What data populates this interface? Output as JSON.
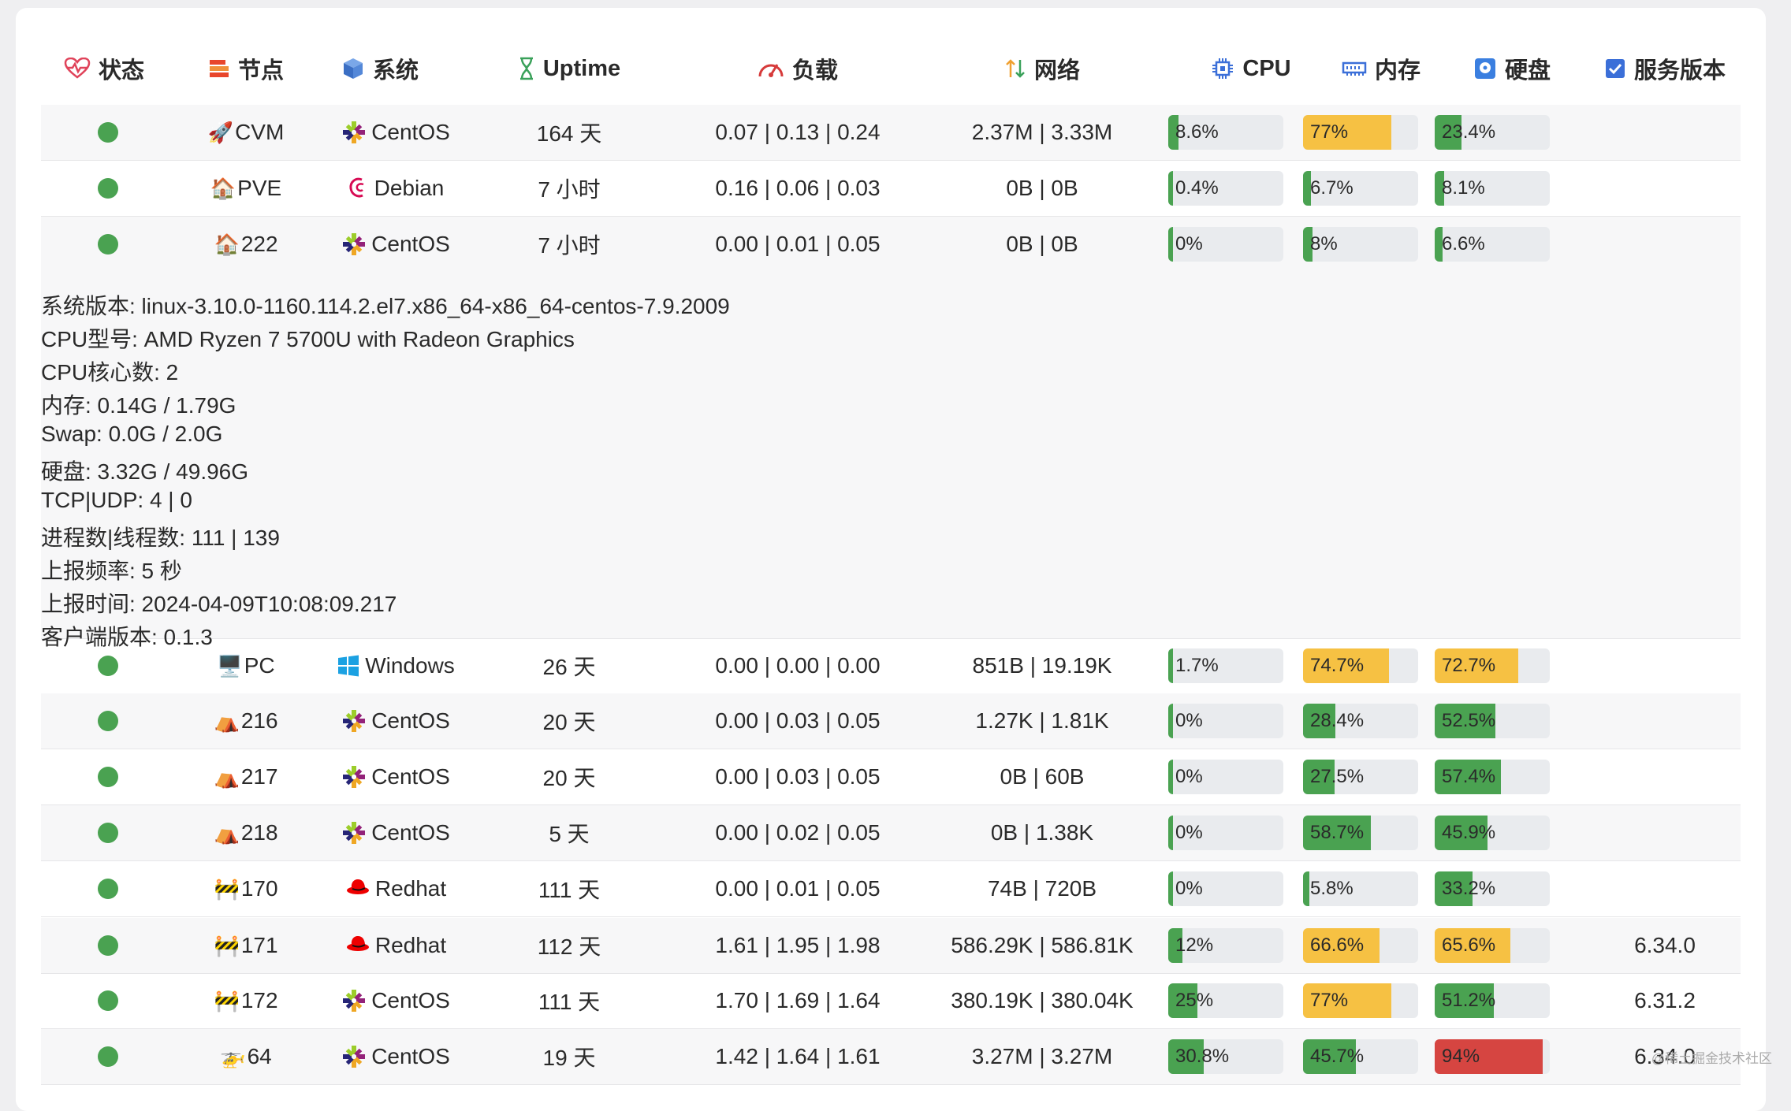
{
  "headers": {
    "status": "状态",
    "node": "节点",
    "os": "系统",
    "uptime": "Uptime",
    "load": "负载",
    "network": "网络",
    "cpu": "CPU",
    "memory": "内存",
    "disk": "硬盘",
    "version": "服务版本"
  },
  "colors": {
    "green": "#4aa251",
    "yellow": "#f6c143",
    "red": "#d64541",
    "track": "#e9ebee"
  },
  "rows": [
    {
      "node_emoji": "🚀",
      "node": "CVM",
      "os_icon": "centos-icon",
      "os": "CentOS",
      "uptime": "164 天",
      "load": "0.07 | 0.13 | 0.24",
      "network": "2.37M | 3.33M",
      "cpu": {
        "label": "8.6%",
        "value": 8.6
      },
      "mem": {
        "label": "77%",
        "value": 77
      },
      "disk": {
        "label": "23.4%",
        "value": 23.4
      },
      "version": ""
    },
    {
      "node_emoji": "🏠",
      "node": "PVE",
      "os_icon": "debian-icon",
      "os": "Debian",
      "uptime": "7 小时",
      "load": "0.16 | 0.06 | 0.03",
      "network": "0B | 0B",
      "cpu": {
        "label": "0.4%",
        "value": 0.4
      },
      "mem": {
        "label": "6.7%",
        "value": 6.7
      },
      "disk": {
        "label": "8.1%",
        "value": 8.1
      },
      "version": ""
    },
    {
      "node_emoji": "🏠",
      "node": "222",
      "os_icon": "centos-icon",
      "os": "CentOS",
      "uptime": "7 小时",
      "load": "0.00 | 0.01 | 0.05",
      "network": "0B | 0B",
      "cpu": {
        "label": "0%",
        "value": 0
      },
      "mem": {
        "label": "8%",
        "value": 8
      },
      "disk": {
        "label": "6.6%",
        "value": 6.6
      },
      "version": ""
    },
    {
      "node_emoji": "🖥️",
      "node": "PC",
      "os_icon": "windows-icon",
      "os": "Windows",
      "uptime": "26 天",
      "load": "0.00 | 0.00 | 0.00",
      "network": "851B | 19.19K",
      "cpu": {
        "label": "1.7%",
        "value": 1.7
      },
      "mem": {
        "label": "74.7%",
        "value": 74.7
      },
      "disk": {
        "label": "72.7%",
        "value": 72.7
      },
      "version": ""
    },
    {
      "node_emoji": "⛺",
      "node": "216",
      "os_icon": "centos-icon",
      "os": "CentOS",
      "uptime": "20 天",
      "load": "0.00 | 0.03 | 0.05",
      "network": "1.27K | 1.81K",
      "cpu": {
        "label": "0%",
        "value": 0
      },
      "mem": {
        "label": "28.4%",
        "value": 28.4
      },
      "disk": {
        "label": "52.5%",
        "value": 52.5
      },
      "version": ""
    },
    {
      "node_emoji": "⛺",
      "node": "217",
      "os_icon": "centos-icon",
      "os": "CentOS",
      "uptime": "20 天",
      "load": "0.00 | 0.03 | 0.05",
      "network": "0B | 60B",
      "cpu": {
        "label": "0%",
        "value": 0
      },
      "mem": {
        "label": "27.5%",
        "value": 27.5
      },
      "disk": {
        "label": "57.4%",
        "value": 57.4
      },
      "version": ""
    },
    {
      "node_emoji": "⛺",
      "node": "218",
      "os_icon": "centos-icon",
      "os": "CentOS",
      "uptime": "5 天",
      "load": "0.00 | 0.02 | 0.05",
      "network": "0B | 1.38K",
      "cpu": {
        "label": "0%",
        "value": 0
      },
      "mem": {
        "label": "58.7%",
        "value": 58.7
      },
      "disk": {
        "label": "45.9%",
        "value": 45.9
      },
      "version": ""
    },
    {
      "node_emoji": "🚧",
      "node": "170",
      "os_icon": "redhat-icon",
      "os": "Redhat",
      "uptime": "111 天",
      "load": "0.00 | 0.01 | 0.05",
      "network": "74B | 720B",
      "cpu": {
        "label": "0%",
        "value": 0
      },
      "mem": {
        "label": "5.8%",
        "value": 5.8
      },
      "disk": {
        "label": "33.2%",
        "value": 33.2
      },
      "version": ""
    },
    {
      "node_emoji": "🚧",
      "node": "171",
      "os_icon": "redhat-icon",
      "os": "Redhat",
      "uptime": "112 天",
      "load": "1.61 | 1.95 | 1.98",
      "network": "586.29K | 586.81K",
      "cpu": {
        "label": "12%",
        "value": 12
      },
      "mem": {
        "label": "66.6%",
        "value": 66.6
      },
      "disk": {
        "label": "65.6%",
        "value": 65.6
      },
      "version": "6.34.0"
    },
    {
      "node_emoji": "🚧",
      "node": "172",
      "os_icon": "centos-icon",
      "os": "CentOS",
      "uptime": "111 天",
      "load": "1.70 | 1.69 | 1.64",
      "network": "380.19K | 380.04K",
      "cpu": {
        "label": "25%",
        "value": 25
      },
      "mem": {
        "label": "77%",
        "value": 77
      },
      "disk": {
        "label": "51.2%",
        "value": 51.2
      },
      "version": "6.31.2"
    },
    {
      "node_emoji": "🚁",
      "node": "64",
      "os_icon": "centos-icon",
      "os": "CentOS",
      "uptime": "19 天",
      "load": "1.42 | 1.64 | 1.61",
      "network": "3.27M | 3.27M",
      "cpu": {
        "label": "30.8%",
        "value": 30.8
      },
      "mem": {
        "label": "45.7%",
        "value": 45.7
      },
      "disk": {
        "label": "94%",
        "value": 94
      },
      "version": "6.34.0"
    }
  ],
  "details": [
    "系统版本: linux-3.10.0-1160.114.2.el7.x86_64-x86_64-centos-7.9.2009",
    "CPU型号: AMD Ryzen 7 5700U with Radeon Graphics",
    "CPU核心数: 2",
    "内存: 0.14G / 1.79G",
    "Swap: 0.0G / 2.0G",
    "硬盘: 3.32G / 49.96G",
    "TCP|UDP: 4 | 0",
    "进程数|线程数: 111 | 139",
    "上报频率: 5 秒",
    "上报时间: 2024-04-09T10:08:09.217",
    "客户端版本: 0.1.3"
  ],
  "watermark": "@稀土掘金技术社区"
}
